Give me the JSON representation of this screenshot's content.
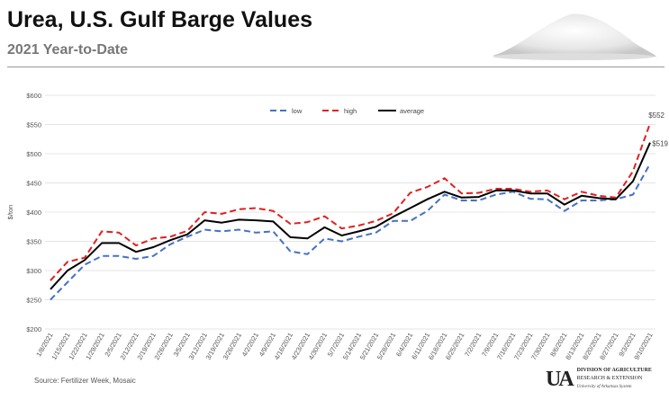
{
  "header": {
    "title": "Urea, U.S. Gulf Barge Values",
    "subtitle": "2021 Year-to-Date"
  },
  "footer": {
    "source": "Source: Fertilizer Week, Mosaic",
    "logo_mark": "U of A",
    "logo_line1": "DIVISION OF AGRICULTURE",
    "logo_line2": "RESEARCH & EXTENSION",
    "logo_line3": "University of Arkansas System"
  },
  "chart_data": {
    "type": "line",
    "title": "Urea, U.S. Gulf Barge Values",
    "xlabel": "",
    "ylabel": "$/ton",
    "ylim": [
      200,
      600
    ],
    "yticks": [
      200,
      250,
      300,
      350,
      400,
      450,
      500,
      550,
      600
    ],
    "ytick_labels": [
      "$200",
      "$250",
      "$300",
      "$350",
      "$400",
      "$450",
      "$500",
      "$550",
      "$600"
    ],
    "grid": true,
    "legend_position": "top-center",
    "categories": [
      "1/8/2021",
      "1/15/2021",
      "1/22/2021",
      "1/29/2021",
      "2/5/2021",
      "2/12/2021",
      "2/19/2021",
      "2/26/2021",
      "3/5/2021",
      "3/12/2021",
      "3/19/2021",
      "3/26/2021",
      "4/2/2021",
      "4/9/2021",
      "4/16/2021",
      "4/23/2021",
      "4/30/2021",
      "5/7/2021",
      "5/14/2021",
      "5/21/2021",
      "5/28/2021",
      "6/4/2021",
      "6/11/2021",
      "6/18/2021",
      "6/25/2021",
      "7/2/2021",
      "7/9/2021",
      "7/16/2021",
      "7/23/2021",
      "7/30/2021",
      "8/6/2021",
      "8/13/2021",
      "8/20/2021",
      "8/27/2021",
      "9/3/2021",
      "9/10/2021"
    ],
    "series": [
      {
        "name": "low",
        "color": "#4472C4",
        "dash": true,
        "values": [
          250,
          280,
          310,
          325,
          325,
          320,
          325,
          345,
          358,
          370,
          367,
          370,
          365,
          367,
          333,
          328,
          355,
          350,
          358,
          365,
          385,
          385,
          402,
          430,
          420,
          420,
          430,
          435,
          423,
          422,
          402,
          420,
          420,
          422,
          430,
          483
        ]
      },
      {
        "name": "high",
        "color": "#E02020",
        "dash": true,
        "values": [
          283,
          315,
          322,
          367,
          365,
          343,
          355,
          358,
          368,
          400,
          397,
          405,
          407,
          402,
          380,
          383,
          393,
          372,
          377,
          385,
          398,
          433,
          443,
          458,
          432,
          433,
          440,
          440,
          435,
          437,
          422,
          435,
          428,
          425,
          470,
          552
        ]
      },
      {
        "name": "average",
        "color": "#000000",
        "dash": false,
        "values": [
          268,
          300,
          318,
          347,
          347,
          332,
          340,
          352,
          362,
          386,
          382,
          387,
          386,
          384,
          357,
          355,
          374,
          360,
          367,
          375,
          392,
          407,
          422,
          435,
          425,
          426,
          437,
          437,
          432,
          432,
          413,
          428,
          424,
          422,
          453,
          519
        ]
      }
    ],
    "annotations": [
      {
        "series": "high",
        "category": "9/10/2021",
        "text": "$552"
      },
      {
        "series": "average",
        "category": "9/10/2021",
        "text": "$519"
      }
    ]
  }
}
